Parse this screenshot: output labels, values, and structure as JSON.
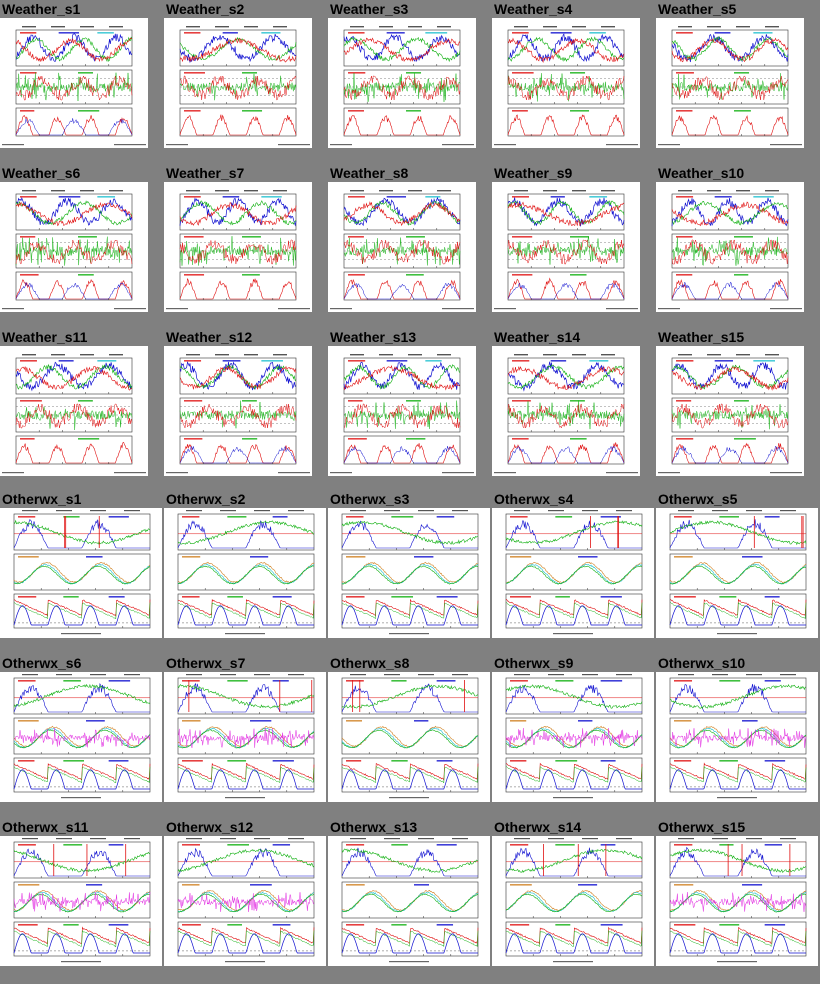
{
  "rows": [
    {
      "kind": "weather",
      "tiles": [
        "Weather_s1",
        "Weather_s2",
        "Weather_s3",
        "Weather_s4",
        "Weather_s5"
      ]
    },
    {
      "kind": "weather",
      "tiles": [
        "Weather_s6",
        "Weather_s7",
        "Weather_s8",
        "Weather_s9",
        "Weather_s10"
      ]
    },
    {
      "kind": "weather",
      "tiles": [
        "Weather_s11",
        "Weather_s12",
        "Weather_s13",
        "Weather_s14",
        "Weather_s15"
      ]
    },
    {
      "kind": "otherwx",
      "tiles": [
        "Otherwx_s1",
        "Otherwx_s2",
        "Otherwx_s3",
        "Otherwx_s4",
        "Otherwx_s5"
      ]
    },
    {
      "kind": "otherwx",
      "tiles": [
        "Otherwx_s6",
        "Otherwx_s7",
        "Otherwx_s8",
        "Otherwx_s9",
        "Otherwx_s10"
      ]
    },
    {
      "kind": "otherwx",
      "tiles": [
        "Otherwx_s11",
        "Otherwx_s12",
        "Otherwx_s13",
        "Otherwx_s14",
        "Otherwx_s15"
      ]
    }
  ],
  "colors": {
    "background": "#808080",
    "series_blue": "#1010d0",
    "series_green": "#10b010",
    "series_red": "#e01010",
    "series_cyan": "#20c0d0",
    "series_magenta": "#e020e0",
    "series_orange": "#d08020"
  }
}
